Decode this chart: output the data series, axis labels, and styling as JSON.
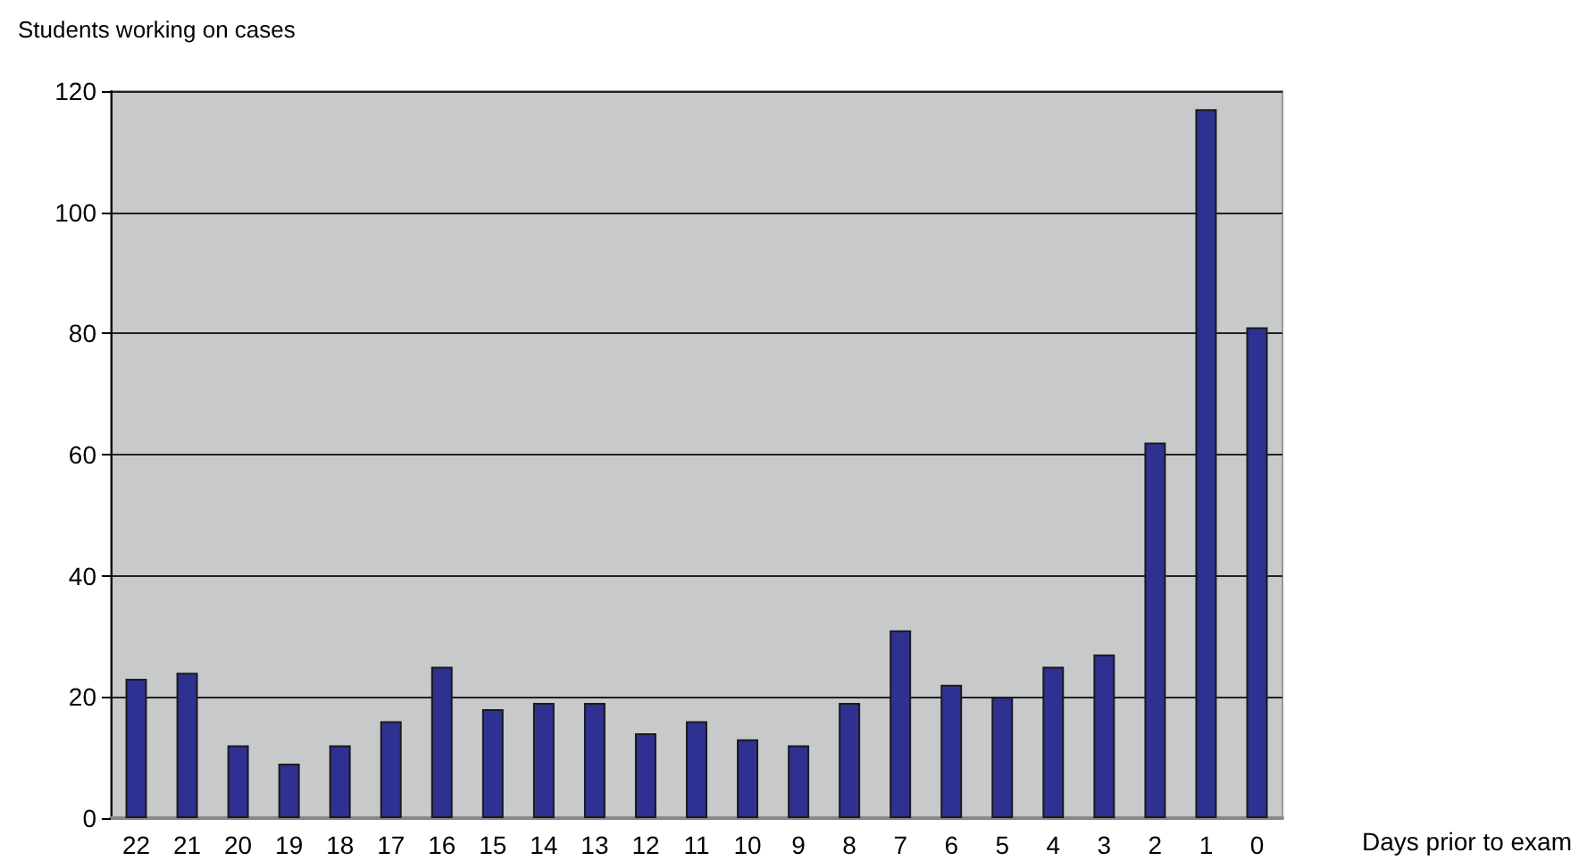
{
  "chart_data": {
    "type": "bar",
    "ylabel": "Students working on cases",
    "xlabel": "Days prior to exam",
    "categories": [
      "22",
      "21",
      "20",
      "19",
      "18",
      "17",
      "16",
      "15",
      "14",
      "13",
      "12",
      "11",
      "10",
      "9",
      "8",
      "7",
      "6",
      "5",
      "4",
      "3",
      "2",
      "1",
      "0"
    ],
    "values": [
      23,
      24,
      12,
      9,
      12,
      16,
      25,
      18,
      19,
      19,
      14,
      16,
      13,
      12,
      19,
      31,
      22,
      20,
      25,
      27,
      62,
      117,
      81
    ],
    "color": "#2e3192",
    "ylim": [
      0,
      120
    ],
    "yticks": [
      0,
      20,
      40,
      60,
      80,
      100,
      120
    ],
    "grid": "y"
  }
}
